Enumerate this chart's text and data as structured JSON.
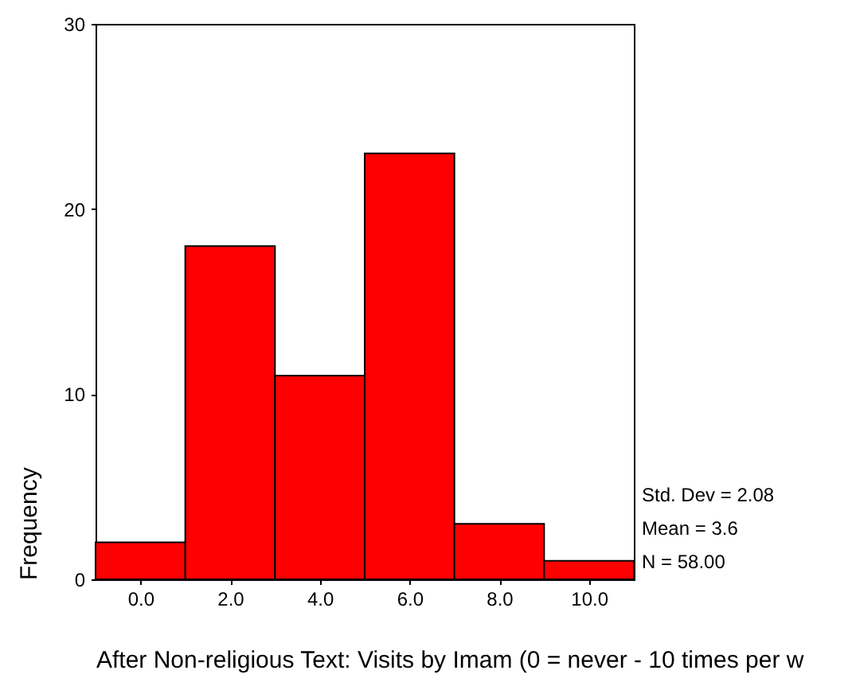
{
  "chart_data": {
    "type": "histogram",
    "xlabel": "After Non-religious Text: Visits by Imam (0 = never - 10 times per w",
    "ylabel": "Frequency",
    "bins": [
      -1,
      1,
      3,
      5,
      7,
      9,
      11
    ],
    "values": [
      2,
      18,
      11,
      23,
      3,
      1
    ],
    "color": "#ff0000",
    "xlim": [
      -1,
      11
    ],
    "ylim": [
      0,
      30
    ],
    "xticks": [
      {
        "value": 0,
        "label": "0.0"
      },
      {
        "value": 2,
        "label": "2.0"
      },
      {
        "value": 4,
        "label": "4.0"
      },
      {
        "value": 6,
        "label": "6.0"
      },
      {
        "value": 8,
        "label": "8.0"
      },
      {
        "value": 10,
        "label": "10.0"
      }
    ],
    "yticks": [
      0,
      10,
      20,
      30
    ],
    "grid": false,
    "annotations": [
      "Std. Dev = 2.08",
      "Mean = 3.6",
      "N = 58.00"
    ]
  }
}
